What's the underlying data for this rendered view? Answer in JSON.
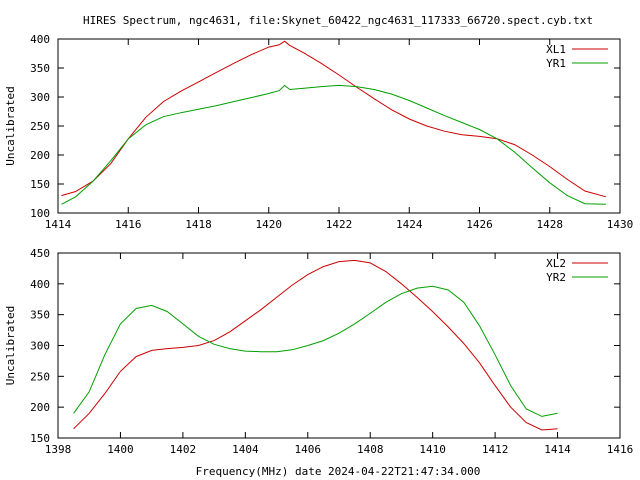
{
  "page_title": "HIRES Spectrum, ngc4631, file:Skynet_60422_ngc4631_117333_66720.spect.cyb.txt",
  "x_axis_title": "Frequency(MHz) date 2024-04-22T21:47:34.000",
  "colors": {
    "red": "#cc0000",
    "green": "#00a000",
    "axis": "#000000"
  },
  "chart_data": [
    {
      "type": "line",
      "title": "HIRES Spectrum, ngc4631, file:Skynet_60422_ngc4631_117333_66720.spect.cyb.txt",
      "xlabel": "",
      "ylabel": "Uncalibrated",
      "xlim": [
        1414,
        1430
      ],
      "ylim": [
        100,
        400
      ],
      "xticks": [
        1414,
        1416,
        1418,
        1420,
        1422,
        1424,
        1426,
        1428,
        1430
      ],
      "yticks": [
        100,
        150,
        200,
        250,
        300,
        350,
        400
      ],
      "legend_position": "top-right",
      "series": [
        {
          "name": "XL1",
          "color": "#cc0000",
          "x": [
            1414.1,
            1414.5,
            1415.0,
            1415.5,
            1416.0,
            1416.5,
            1417.0,
            1417.5,
            1418.0,
            1418.5,
            1419.0,
            1419.5,
            1420.0,
            1420.3,
            1420.45,
            1420.6,
            1421.0,
            1421.5,
            1422.0,
            1422.5,
            1423.0,
            1423.5,
            1424.0,
            1424.5,
            1425.0,
            1425.5,
            1426.0,
            1426.5,
            1427.0,
            1427.5,
            1428.0,
            1428.5,
            1429.0,
            1429.6
          ],
          "values": [
            130,
            137,
            155,
            185,
            228,
            265,
            292,
            310,
            326,
            342,
            358,
            373,
            386,
            390,
            396,
            389,
            376,
            358,
            338,
            317,
            297,
            278,
            262,
            250,
            241,
            235,
            232,
            228,
            218,
            200,
            180,
            158,
            138,
            128
          ]
        },
        {
          "name": "YR1",
          "color": "#00a000",
          "x": [
            1414.1,
            1414.5,
            1415.0,
            1415.5,
            1416.0,
            1416.5,
            1417.0,
            1417.5,
            1418.0,
            1418.5,
            1419.0,
            1419.5,
            1420.0,
            1420.3,
            1420.45,
            1420.6,
            1421.0,
            1421.5,
            1422.0,
            1422.5,
            1423.0,
            1423.5,
            1424.0,
            1424.5,
            1425.0,
            1425.5,
            1426.0,
            1426.5,
            1427.0,
            1427.5,
            1428.0,
            1428.5,
            1429.0,
            1429.6
          ],
          "values": [
            115,
            128,
            155,
            190,
            228,
            252,
            266,
            273,
            279,
            285,
            292,
            299,
            306,
            311,
            320,
            313,
            315,
            318,
            320,
            318,
            313,
            305,
            294,
            281,
            268,
            256,
            244,
            228,
            205,
            178,
            152,
            130,
            116,
            115
          ]
        }
      ]
    },
    {
      "type": "line",
      "title": "",
      "xlabel": "Frequency(MHz) date 2024-04-22T21:47:34.000",
      "ylabel": "Uncalibrated",
      "xlim": [
        1398,
        1416
      ],
      "ylim": [
        150,
        450
      ],
      "xticks": [
        1398,
        1400,
        1402,
        1404,
        1406,
        1408,
        1410,
        1412,
        1414,
        1416
      ],
      "yticks": [
        150,
        200,
        250,
        300,
        350,
        400,
        450
      ],
      "legend_position": "top-right",
      "series": [
        {
          "name": "XL2",
          "color": "#cc0000",
          "x": [
            1398.5,
            1399.0,
            1399.5,
            1400.0,
            1400.5,
            1401.0,
            1401.5,
            1402.0,
            1402.5,
            1403.0,
            1403.5,
            1404.0,
            1404.5,
            1405.0,
            1405.5,
            1406.0,
            1406.5,
            1407.0,
            1407.5,
            1408.0,
            1408.5,
            1409.0,
            1409.5,
            1410.0,
            1410.5,
            1411.0,
            1411.5,
            1412.0,
            1412.5,
            1413.0,
            1413.5,
            1414.0
          ],
          "values": [
            165,
            190,
            222,
            258,
            282,
            292,
            295,
            297,
            300,
            308,
            322,
            340,
            358,
            378,
            398,
            415,
            428,
            436,
            438,
            434,
            420,
            400,
            378,
            355,
            330,
            303,
            272,
            235,
            200,
            175,
            163,
            165
          ]
        },
        {
          "name": "YR2",
          "color": "#00a000",
          "x": [
            1398.5,
            1399.0,
            1399.5,
            1400.0,
            1400.5,
            1401.0,
            1401.5,
            1402.0,
            1402.5,
            1403.0,
            1403.5,
            1404.0,
            1404.5,
            1405.0,
            1405.5,
            1406.0,
            1406.5,
            1407.0,
            1407.5,
            1408.0,
            1408.5,
            1409.0,
            1409.5,
            1410.0,
            1410.5,
            1411.0,
            1411.5,
            1412.0,
            1412.5,
            1413.0,
            1413.5,
            1414.0
          ],
          "values": [
            190,
            225,
            285,
            335,
            360,
            365,
            355,
            335,
            315,
            302,
            295,
            291,
            290,
            290,
            293,
            300,
            308,
            320,
            335,
            352,
            370,
            384,
            393,
            396,
            390,
            370,
            332,
            285,
            235,
            197,
            185,
            190
          ]
        }
      ]
    }
  ]
}
